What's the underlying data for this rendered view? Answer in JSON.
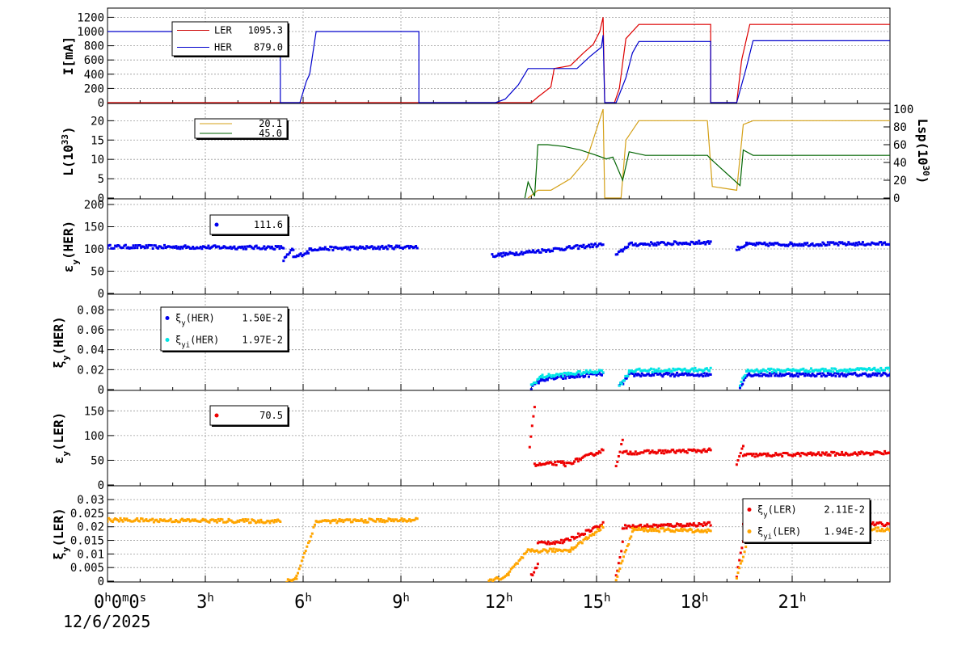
{
  "chart_data": {
    "type": "line",
    "date": "12/6/2025",
    "time_axis": {
      "range_hours": [
        0,
        24
      ],
      "ticks": [
        {
          "h": 0,
          "label": "0h0m0s"
        },
        {
          "h": 3,
          "label": "3h"
        },
        {
          "h": 6,
          "label": "6h"
        },
        {
          "h": 9,
          "label": "9h"
        },
        {
          "h": 12,
          "label": "12h"
        },
        {
          "h": 15,
          "label": "15h"
        },
        {
          "h": 18,
          "label": "18h"
        },
        {
          "h": 21,
          "label": "21h"
        }
      ]
    },
    "grid": true,
    "panels": [
      {
        "id": "current",
        "ylabel": "I[mA]",
        "ylim": [
          0,
          1250
        ],
        "yticks": [
          0,
          200,
          400,
          600,
          800,
          1000,
          1200
        ],
        "legend": [
          {
            "name": "LER",
            "value": "1095.3",
            "color": "#cc0000"
          },
          {
            "name": "HER",
            "value": "879.0",
            "color": "#0000cc"
          }
        ],
        "series": [
          {
            "name": "LER",
            "color": "#dd0000",
            "points": [
              [
                0,
                0
              ],
              [
                13.0,
                0
              ],
              [
                13.2,
                80
              ],
              [
                13.6,
                220
              ],
              [
                13.7,
                480
              ],
              [
                14.2,
                520
              ],
              [
                14.6,
                700
              ],
              [
                14.9,
                820
              ],
              [
                15.1,
                1000
              ],
              [
                15.2,
                1200
              ],
              [
                15.25,
                0
              ],
              [
                15.55,
                0
              ],
              [
                15.7,
                200
              ],
              [
                15.9,
                900
              ],
              [
                16.3,
                1100
              ],
              [
                18.5,
                1100
              ],
              [
                18.5,
                0
              ],
              [
                19.3,
                0
              ],
              [
                19.45,
                600
              ],
              [
                19.7,
                1100
              ],
              [
                24,
                1100
              ]
            ]
          },
          {
            "name": "HER",
            "color": "#0000cc",
            "points": [
              [
                0,
                1000
              ],
              [
                5.3,
                1000
              ],
              [
                5.3,
                0
              ],
              [
                5.9,
                0
              ],
              [
                6.1,
                300
              ],
              [
                6.2,
                400
              ],
              [
                6.4,
                1000
              ],
              [
                9.55,
                1000
              ],
              [
                9.55,
                0
              ],
              [
                11.9,
                0
              ],
              [
                12.2,
                50
              ],
              [
                12.6,
                250
              ],
              [
                12.9,
                480
              ],
              [
                14.4,
                480
              ],
              [
                14.8,
                650
              ],
              [
                15.15,
                780
              ],
              [
                15.2,
                950
              ],
              [
                15.25,
                0
              ],
              [
                15.6,
                0
              ],
              [
                15.9,
                350
              ],
              [
                16.1,
                700
              ],
              [
                16.3,
                860
              ],
              [
                18.5,
                860
              ],
              [
                18.5,
                0
              ],
              [
                19.3,
                0
              ],
              [
                19.6,
                500
              ],
              [
                19.8,
                870
              ],
              [
                24,
                870
              ]
            ]
          }
        ]
      },
      {
        "id": "luminosity",
        "ylabel": "L(10^33)",
        "ylim": [
          0,
          23
        ],
        "yticks": [
          0,
          5,
          10,
          15,
          20
        ],
        "y2label": "Lsp(10^30)",
        "y2lim": [
          0,
          100
        ],
        "y2ticks": [
          0,
          20,
          40,
          60,
          80,
          100
        ],
        "legend": [
          {
            "name": "",
            "value": "20.1",
            "color": "#d4a017"
          },
          {
            "name": "",
            "value": "45.0",
            "color": "#006400"
          }
        ],
        "series": [
          {
            "name": "L",
            "color": "#d4a017",
            "points": [
              [
                12.9,
                0
              ],
              [
                13.2,
                2
              ],
              [
                13.6,
                2
              ],
              [
                14.2,
                5
              ],
              [
                14.7,
                10
              ],
              [
                15.2,
                23
              ],
              [
                15.25,
                0
              ],
              [
                15.75,
                0
              ],
              [
                15.9,
                15
              ],
              [
                16.3,
                20
              ],
              [
                18.4,
                20
              ],
              [
                18.55,
                3
              ],
              [
                19.3,
                2
              ],
              [
                19.5,
                19
              ],
              [
                19.8,
                20
              ],
              [
                24,
                20
              ]
            ]
          },
          {
            "name": "Lsp",
            "color": "#006400",
            "axis": "y2",
            "points": [
              [
                12.8,
                0
              ],
              [
                12.9,
                18
              ],
              [
                13.1,
                2
              ],
              [
                13.2,
                60
              ],
              [
                13.5,
                60
              ],
              [
                14.0,
                58
              ],
              [
                14.5,
                54
              ],
              [
                15.0,
                48
              ],
              [
                15.3,
                44
              ],
              [
                15.5,
                46
              ],
              [
                15.8,
                20
              ],
              [
                16.0,
                52
              ],
              [
                16.5,
                48
              ],
              [
                18.4,
                48
              ],
              [
                18.5,
                44
              ],
              [
                19.4,
                14
              ],
              [
                19.5,
                54
              ],
              [
                19.8,
                48
              ],
              [
                24,
                48
              ]
            ]
          }
        ]
      },
      {
        "id": "emit_her",
        "ylabel": "εy(HER)",
        "ylim": [
          0,
          200
        ],
        "yticks": [
          0,
          50,
          100,
          150,
          200
        ],
        "legend": [
          {
            "name": "",
            "value": "111.6",
            "color": "#0000ee"
          }
        ],
        "series": [
          {
            "name": "εy(HER)",
            "color": "#0000ee",
            "style": "dots",
            "segments": [
              [
                0,
                5.4,
                105,
                103
              ],
              [
                5.4,
                5.7,
                75,
                100
              ],
              [
                5.7,
                6.2,
                80,
                95
              ],
              [
                6.2,
                9.5,
                100,
                105
              ],
              [
                11.8,
                12.5,
                85,
                90
              ],
              [
                12.5,
                15.2,
                90,
                110
              ],
              [
                15.6,
                16.0,
                85,
                110
              ],
              [
                16.0,
                18.5,
                110,
                115
              ],
              [
                19.3,
                19.6,
                100,
                110
              ],
              [
                19.6,
                24,
                110,
                112
              ]
            ]
          }
        ]
      },
      {
        "id": "xi_her",
        "ylabel": "ξy(HER)",
        "ylim": [
          0,
          0.09
        ],
        "yticks": [
          0,
          0.02,
          0.04,
          0.06,
          0.08
        ],
        "legend": [
          {
            "name": "ξy(HER)",
            "value": "1.50E-2",
            "color": "#0000ee"
          },
          {
            "name": "ξyi(HER)",
            "value": "1.97E-2",
            "color": "#00e5e5"
          }
        ],
        "series": [
          {
            "name": "ξy(HER)",
            "color": "#0000ee",
            "style": "dots",
            "segments": [
              [
                13.0,
                13.3,
                0.002,
                0.01
              ],
              [
                13.3,
                15.2,
                0.01,
                0.016
              ],
              [
                15.7,
                16.0,
                0.003,
                0.014
              ],
              [
                16.0,
                18.5,
                0.015,
                0.015
              ],
              [
                19.4,
                19.6,
                0.003,
                0.014
              ],
              [
                19.6,
                24,
                0.015,
                0.015
              ]
            ]
          },
          {
            "name": "ξyi(HER)",
            "color": "#00e5e5",
            "style": "dots",
            "segments": [
              [
                13.0,
                13.3,
                0.004,
                0.013
              ],
              [
                13.3,
                15.2,
                0.013,
                0.019
              ],
              [
                15.7,
                16.0,
                0.004,
                0.017
              ],
              [
                16.0,
                18.5,
                0.019,
                0.02
              ],
              [
                19.4,
                19.6,
                0.004,
                0.018
              ],
              [
                19.6,
                24,
                0.019,
                0.02
              ]
            ]
          }
        ]
      },
      {
        "id": "emit_ler",
        "ylabel": "εy(LER)",
        "ylim": [
          0,
          180
        ],
        "yticks": [
          0,
          50,
          100,
          150
        ],
        "legend": [
          {
            "name": "",
            "value": "70.5",
            "color": "#ee0000"
          }
        ],
        "series": [
          {
            "name": "εy(LER)",
            "color": "#ee0000",
            "style": "dots",
            "segments": [
              [
                12.95,
                13.1,
                80,
                160
              ],
              [
                13.1,
                14.0,
                40,
                45
              ],
              [
                14.0,
                15.2,
                40,
                70
              ],
              [
                15.6,
                15.8,
                40,
                90
              ],
              [
                15.8,
                18.5,
                65,
                70
              ],
              [
                19.3,
                19.5,
                40,
                80
              ],
              [
                19.5,
                24,
                60,
                65
              ]
            ]
          }
        ]
      },
      {
        "id": "xi_ler",
        "ylabel": "ξy(LER)",
        "ylim": [
          0,
          0.033
        ],
        "yticks": [
          0,
          0.005,
          0.01,
          0.015,
          0.02,
          0.025,
          0.03
        ],
        "ytick_labels": [
          "0",
          "0.005",
          "0.01",
          "0.015",
          "0.02",
          "0.025",
          "0.03"
        ],
        "legend": [
          {
            "name": "ξy(LER)",
            "value": "2.11E-2",
            "color": "#ee0000"
          },
          {
            "name": "ξyi(LER)",
            "value": "1.94E-2",
            "color": "#ffa500"
          }
        ],
        "series": [
          {
            "name": "ξy(LER)",
            "color": "#ee0000",
            "style": "dots",
            "segments": [
              [
                13.0,
                13.2,
                0.002,
                0.006
              ],
              [
                13.2,
                14.0,
                0.014,
                0.0145
              ],
              [
                14.0,
                15.2,
                0.0145,
                0.021
              ],
              [
                15.6,
                15.8,
                0.002,
                0.014
              ],
              [
                15.8,
                18.5,
                0.02,
                0.021
              ],
              [
                19.3,
                19.5,
                0.002,
                0.015
              ],
              [
                19.5,
                24,
                0.021,
                0.021
              ]
            ]
          },
          {
            "name": "ξyi(LER)",
            "color": "#ffa500",
            "style": "dots",
            "segments": [
              [
                0,
                5.3,
                0.0225,
                0.022
              ],
              [
                5.5,
                5.8,
                0.0,
                0.001
              ],
              [
                5.8,
                6.4,
                0.002,
                0.022
              ],
              [
                6.4,
                9.5,
                0.022,
                0.0225
              ],
              [
                11.7,
                12.3,
                0.0,
                0.002
              ],
              [
                12.3,
                12.9,
                0.003,
                0.011
              ],
              [
                12.9,
                14.2,
                0.011,
                0.0115
              ],
              [
                14.2,
                15.2,
                0.0115,
                0.02
              ],
              [
                15.6,
                16.1,
                0.001,
                0.018
              ],
              [
                16.1,
                18.5,
                0.019,
                0.0185
              ],
              [
                19.3,
                19.7,
                0.001,
                0.018
              ],
              [
                19.7,
                24,
                0.019,
                0.019
              ]
            ]
          }
        ]
      }
    ]
  }
}
